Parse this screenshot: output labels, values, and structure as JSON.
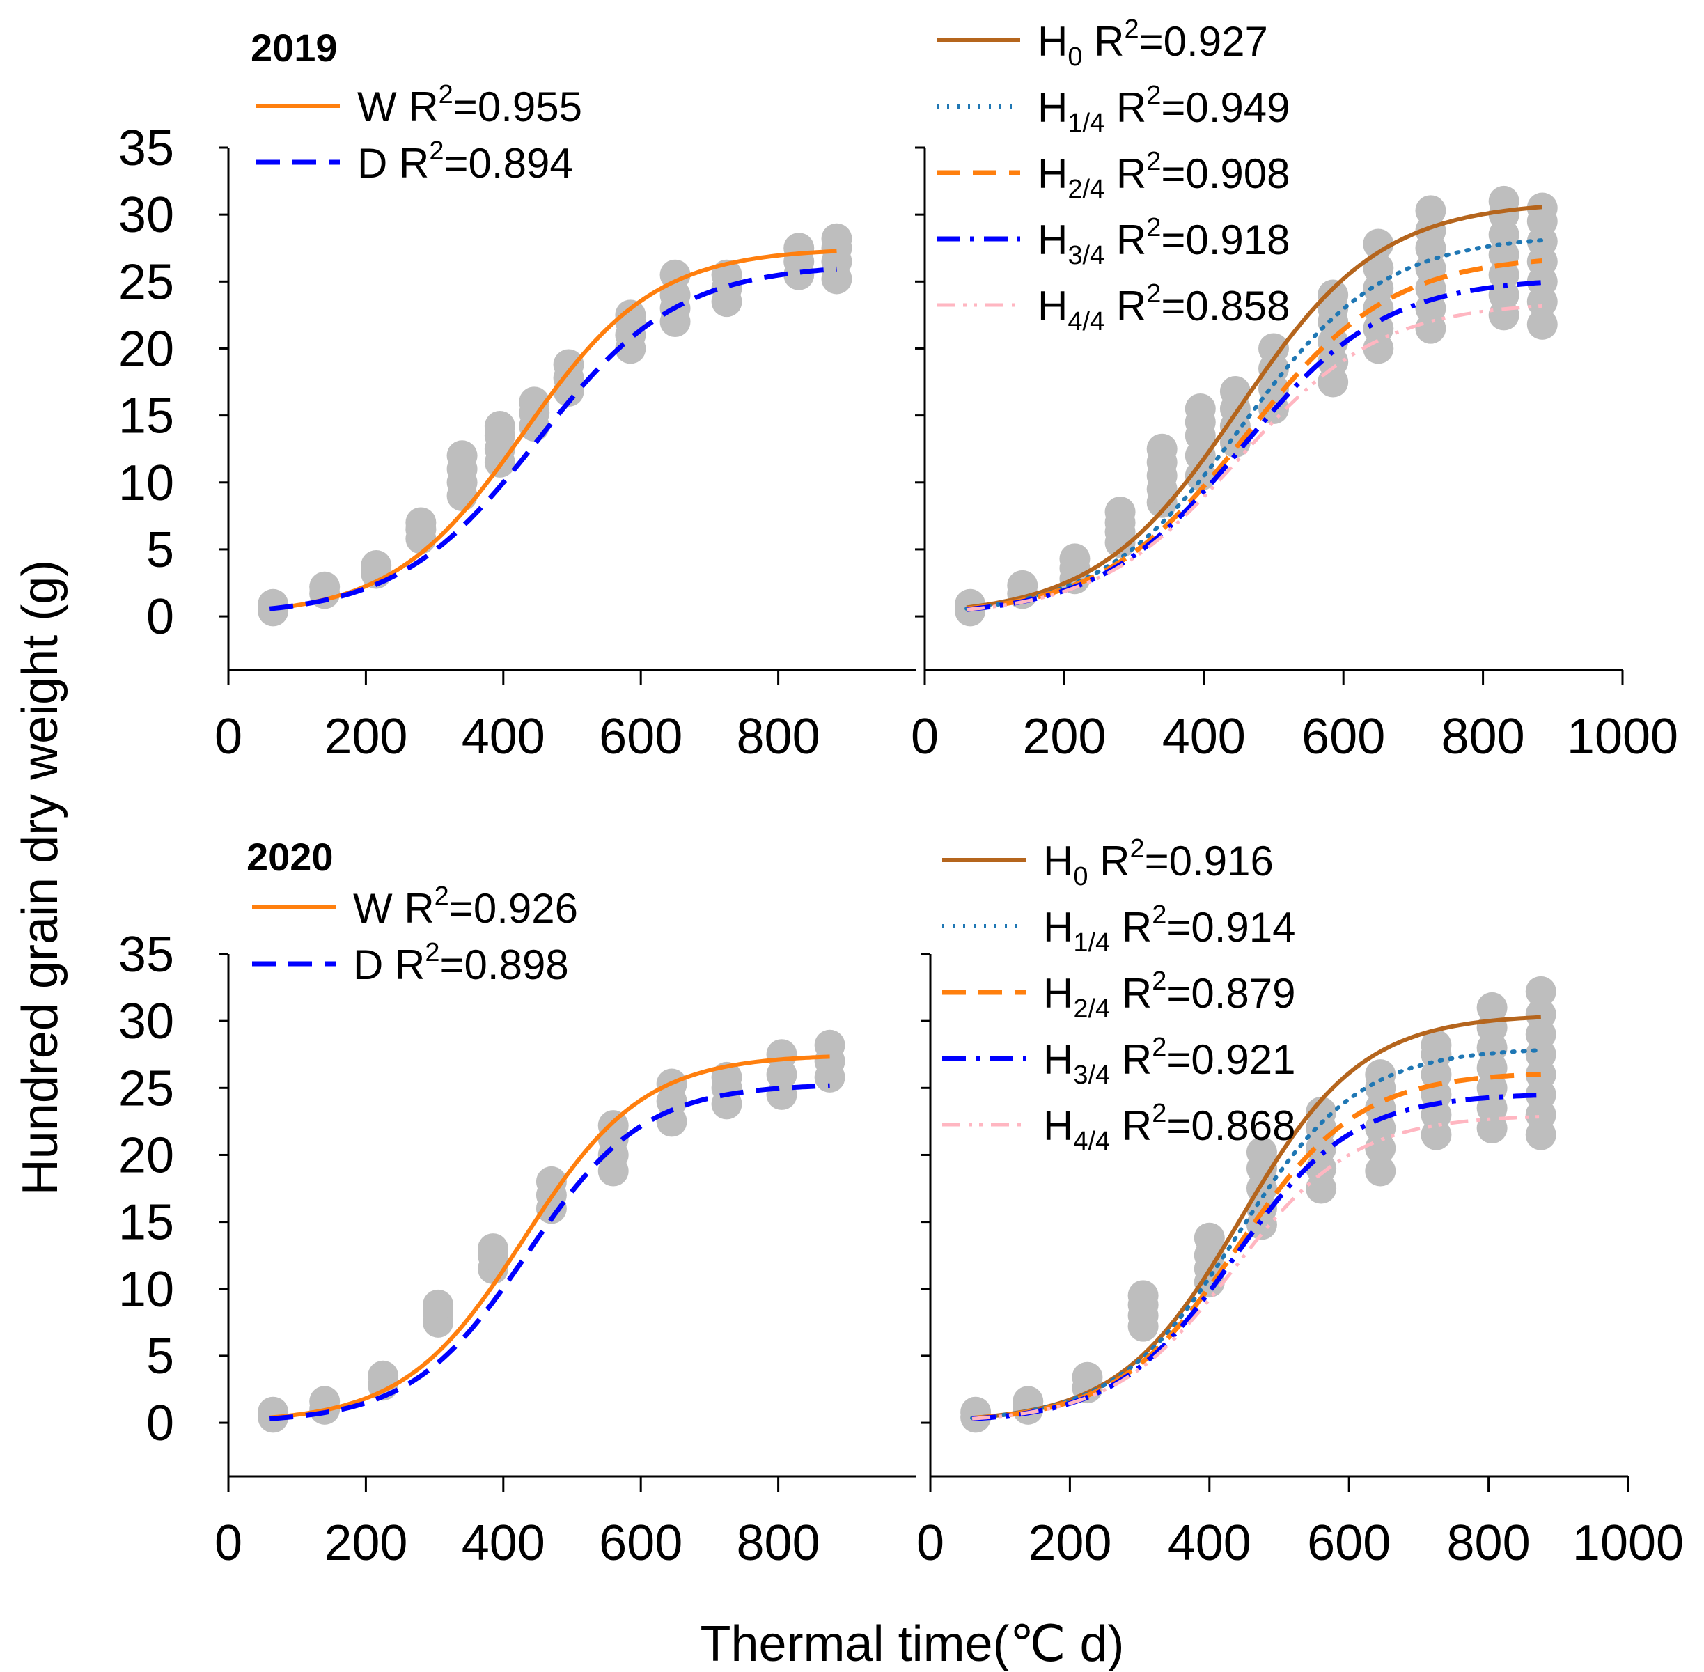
{
  "figure": {
    "ylabel": "Hundred grain dry weight (g)",
    "xlabel": "Thermal time(℃ d)"
  },
  "colors": {
    "W": "#FF7F0E",
    "D": "#0000FF",
    "H0": "#B5651D",
    "H1_4": "#1F77B4",
    "H2_4": "#FF7F0E",
    "H3_4": "#0000FF",
    "H4_4": "#FFB6C1",
    "points": "#BEBEBE"
  },
  "chart_data": [
    {
      "type": "scatter",
      "title": "2019",
      "xlabel": "Thermal time(℃ d)",
      "ylabel": "Hundred grain dry weight (g)",
      "xlim": [
        0,
        1000
      ],
      "ylim": [
        -4,
        35
      ],
      "xticks": [
        0,
        200,
        400,
        600,
        800
      ],
      "yticks": [
        0,
        5,
        10,
        15,
        20,
        25,
        30,
        35
      ],
      "grid": false,
      "legend": [
        {
          "label": "W",
          "sub": "",
          "r2": "R2=0.955"
        },
        {
          "label": "D",
          "sub": "",
          "r2": "R2=0.894"
        }
      ],
      "series": [
        {
          "name": "W",
          "key": "W",
          "style": "solid",
          "K": 27.5,
          "a": 0.0105,
          "b": 430,
          "xmax": 885
        },
        {
          "name": "D",
          "key": "D",
          "style": "dashed",
          "K": 26.3,
          "a": 0.0098,
          "b": 450,
          "xmax": 885
        }
      ],
      "points": [
        {
          "x": 65,
          "y": [
            0.4,
            0.9
          ]
        },
        {
          "x": 140,
          "y": [
            1.7,
            2.2
          ]
        },
        {
          "x": 215,
          "y": [
            3.2,
            3.8
          ]
        },
        {
          "x": 280,
          "y": [
            5.8,
            6.5,
            7.0
          ]
        },
        {
          "x": 340,
          "y": [
            9.0,
            10.0,
            11.0,
            12.0
          ]
        },
        {
          "x": 395,
          "y": [
            11.5,
            12.5,
            13.5,
            14.2
          ]
        },
        {
          "x": 445,
          "y": [
            14.2,
            15.2,
            16.0
          ]
        },
        {
          "x": 495,
          "y": [
            16.8,
            17.8,
            18.8
          ]
        },
        {
          "x": 585,
          "y": [
            20.0,
            21.0,
            22.0,
            22.5
          ]
        },
        {
          "x": 650,
          "y": [
            22.0,
            23.0,
            24.0,
            25.5
          ]
        },
        {
          "x": 725,
          "y": [
            23.5,
            24.5,
            25.5
          ]
        },
        {
          "x": 830,
          "y": [
            25.5,
            26.5,
            27.5
          ]
        },
        {
          "x": 885,
          "y": [
            25.2,
            26.5,
            27.5,
            28.2
          ]
        }
      ]
    },
    {
      "type": "scatter",
      "title": "",
      "xlabel": "Thermal time(℃ d)",
      "ylabel": "Hundred grain dry weight (g)",
      "xlim": [
        0,
        1000
      ],
      "ylim": [
        -4,
        35
      ],
      "xticks": [
        0,
        200,
        400,
        600,
        800,
        1000
      ],
      "yticks": [
        0,
        5,
        10,
        15,
        20,
        25,
        30,
        35
      ],
      "grid": false,
      "legend": [
        {
          "label": "H",
          "sub": "0",
          "r2": "R2=0.927"
        },
        {
          "label": "H",
          "sub": "1/4",
          "r2": "R2=0.949"
        },
        {
          "label": "H",
          "sub": "2/4",
          "r2": "R2=0.908"
        },
        {
          "label": "H",
          "sub": "3/4",
          "r2": "R2=0.918"
        },
        {
          "label": "H",
          "sub": "4/4",
          "r2": "R2=0.858"
        }
      ],
      "series": [
        {
          "name": "H0",
          "key": "H0",
          "style": "solid",
          "K": 31.0,
          "a": 0.0098,
          "b": 450,
          "xmax": 885
        },
        {
          "name": "H1/4",
          "key": "H1_4",
          "style": "dotted",
          "K": 28.5,
          "a": 0.0098,
          "b": 455,
          "xmax": 885
        },
        {
          "name": "H2/4",
          "key": "H2_4",
          "style": "dashed",
          "K": 27.0,
          "a": 0.0096,
          "b": 460,
          "xmax": 885
        },
        {
          "name": "H3/4",
          "key": "H3_4",
          "style": "dashdot",
          "K": 25.3,
          "a": 0.0098,
          "b": 455,
          "xmax": 885
        },
        {
          "name": "H4/4",
          "key": "H4_4",
          "style": "dashdotdot",
          "K": 23.5,
          "a": 0.0098,
          "b": 450,
          "xmax": 885
        }
      ],
      "points": [
        {
          "x": 65,
          "y": [
            0.4,
            0.9
          ]
        },
        {
          "x": 140,
          "y": [
            1.7,
            2.3
          ]
        },
        {
          "x": 215,
          "y": [
            2.8,
            3.6,
            4.3
          ]
        },
        {
          "x": 280,
          "y": [
            5.5,
            6.3,
            7.0,
            7.8
          ]
        },
        {
          "x": 340,
          "y": [
            8.5,
            9.5,
            10.5,
            11.5,
            12.5
          ]
        },
        {
          "x": 395,
          "y": [
            10.5,
            12.0,
            13.5,
            14.5,
            15.5
          ]
        },
        {
          "x": 445,
          "y": [
            13.0,
            14.2,
            15.5,
            16.8
          ]
        },
        {
          "x": 500,
          "y": [
            15.5,
            17.0,
            18.5,
            20.0
          ]
        },
        {
          "x": 585,
          "y": [
            17.5,
            19.0,
            20.5,
            22.0,
            23.0,
            24.0
          ]
        },
        {
          "x": 650,
          "y": [
            20.0,
            21.5,
            23.0,
            24.5,
            26.0,
            27.8
          ]
        },
        {
          "x": 725,
          "y": [
            21.5,
            23.0,
            24.5,
            26.0,
            27.5,
            28.8,
            30.3
          ]
        },
        {
          "x": 830,
          "y": [
            22.5,
            24.0,
            25.5,
            27.0,
            28.5,
            30.0,
            31.0
          ]
        },
        {
          "x": 885,
          "y": [
            21.8,
            23.5,
            25.0,
            26.5,
            28.0,
            29.5,
            30.5
          ]
        }
      ]
    },
    {
      "type": "scatter",
      "title": "2020",
      "xlabel": "Thermal time(℃ d)",
      "ylabel": "Hundred grain dry weight (g)",
      "xlim": [
        0,
        1000
      ],
      "ylim": [
        -4,
        35
      ],
      "xticks": [
        0,
        200,
        400,
        600,
        800
      ],
      "yticks": [
        0,
        5,
        10,
        15,
        20,
        25,
        30,
        35
      ],
      "grid": false,
      "legend": [
        {
          "label": "W",
          "sub": "",
          "r2": "R2=0.926"
        },
        {
          "label": "D",
          "sub": "",
          "r2": "R2=0.898"
        }
      ],
      "series": [
        {
          "name": "W",
          "key": "W",
          "style": "solid",
          "K": 27.5,
          "a": 0.0115,
          "b": 430,
          "xmax": 875
        },
        {
          "name": "D",
          "key": "D",
          "style": "dashed",
          "K": 25.3,
          "a": 0.0118,
          "b": 435,
          "xmax": 875
        }
      ],
      "points": [
        {
          "x": 65,
          "y": [
            0.4,
            0.8
          ]
        },
        {
          "x": 140,
          "y": [
            1.0,
            1.6
          ]
        },
        {
          "x": 225,
          "y": [
            2.8,
            3.5
          ]
        },
        {
          "x": 305,
          "y": [
            7.5,
            8.2,
            8.8
          ]
        },
        {
          "x": 385,
          "y": [
            11.5,
            12.5,
            13.0
          ]
        },
        {
          "x": 470,
          "y": [
            16.0,
            17.0,
            18.0
          ]
        },
        {
          "x": 560,
          "y": [
            18.8,
            20.0,
            21.2,
            22.2
          ]
        },
        {
          "x": 645,
          "y": [
            22.5,
            24.0,
            25.3
          ]
        },
        {
          "x": 725,
          "y": [
            23.8,
            25.0,
            25.8
          ]
        },
        {
          "x": 805,
          "y": [
            24.5,
            26.0,
            27.5
          ]
        },
        {
          "x": 875,
          "y": [
            25.8,
            27.0,
            28.2
          ]
        }
      ]
    },
    {
      "type": "scatter",
      "title": "",
      "xlabel": "Thermal time(℃ d)",
      "ylabel": "Hundred grain dry weight (g)",
      "xlim": [
        0,
        1000
      ],
      "ylim": [
        -4,
        35
      ],
      "xticks": [
        0,
        200,
        400,
        600,
        800,
        1000
      ],
      "yticks": [
        0,
        5,
        10,
        15,
        20,
        25,
        30,
        35
      ],
      "grid": false,
      "legend": [
        {
          "label": "H",
          "sub": "0",
          "r2": "R2=0.916"
        },
        {
          "label": "H",
          "sub": "1/4",
          "r2": "R2=0.914"
        },
        {
          "label": "H",
          "sub": "2/4",
          "r2": "R2=0.879"
        },
        {
          "label": "H",
          "sub": "3/4",
          "r2": "R2=0.921"
        },
        {
          "label": "H",
          "sub": "4/4",
          "r2": "R2=0.868"
        }
      ],
      "series": [
        {
          "name": "H0",
          "key": "H0",
          "style": "solid",
          "K": 30.5,
          "a": 0.0115,
          "b": 445,
          "xmax": 875
        },
        {
          "name": "H1/4",
          "key": "H1_4",
          "style": "dotted",
          "K": 28.0,
          "a": 0.0115,
          "b": 440,
          "xmax": 875
        },
        {
          "name": "H2/4",
          "key": "H2_4",
          "style": "dashed",
          "K": 26.2,
          "a": 0.0115,
          "b": 440,
          "xmax": 875
        },
        {
          "name": "H3/4",
          "key": "H3_4",
          "style": "dashdot",
          "K": 24.6,
          "a": 0.0118,
          "b": 435,
          "xmax": 875
        },
        {
          "name": "H4/4",
          "key": "H4_4",
          "style": "dashdotdot",
          "K": 23.0,
          "a": 0.0115,
          "b": 435,
          "xmax": 875
        }
      ],
      "points": [
        {
          "x": 65,
          "y": [
            0.4,
            0.8
          ]
        },
        {
          "x": 140,
          "y": [
            1.0,
            1.6
          ]
        },
        {
          "x": 225,
          "y": [
            2.6,
            3.4
          ]
        },
        {
          "x": 305,
          "y": [
            7.2,
            8.0,
            8.8,
            9.5
          ]
        },
        {
          "x": 400,
          "y": [
            10.5,
            11.5,
            12.5,
            13.8
          ]
        },
        {
          "x": 475,
          "y": [
            14.8,
            16.0,
            17.5,
            19.0,
            20.2
          ]
        },
        {
          "x": 560,
          "y": [
            17.5,
            19.0,
            20.5,
            22.0,
            23.2
          ]
        },
        {
          "x": 645,
          "y": [
            18.8,
            20.5,
            22.0,
            23.5,
            25.0,
            26.0
          ]
        },
        {
          "x": 725,
          "y": [
            21.5,
            23.0,
            24.5,
            26.0,
            27.5,
            28.2
          ]
        },
        {
          "x": 805,
          "y": [
            22.0,
            23.5,
            25.0,
            26.5,
            28.0,
            29.5,
            31.0
          ]
        },
        {
          "x": 875,
          "y": [
            21.5,
            23.0,
            24.5,
            26.0,
            27.5,
            29.0,
            30.5,
            32.2
          ]
        }
      ]
    }
  ]
}
